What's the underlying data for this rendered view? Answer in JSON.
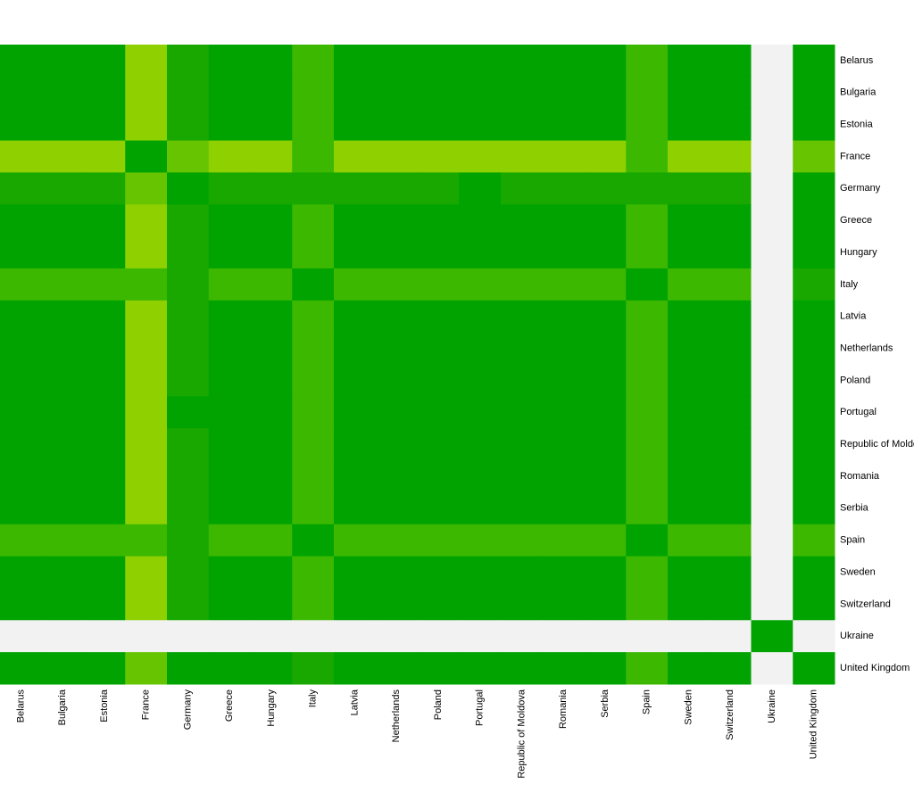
{
  "chart_data": {
    "type": "heatmap",
    "categories": [
      "Belarus",
      "Bulgaria",
      "Estonia",
      "France",
      "Germany",
      "Greece",
      "Hungary",
      "Italy",
      "Latvia",
      "Netherlands",
      "Poland",
      "Portugal",
      "Republic of Moldova",
      "Romania",
      "Serbia",
      "Spain",
      "Sweden",
      "Switzerland",
      "Ukraine",
      "United Kingdom"
    ],
    "cell_colors": [
      [
        "#00a300",
        "#00a300",
        "#00a300",
        "#8ed000",
        "#18a800",
        "#00a300",
        "#00a300",
        "#3cb800",
        "#00a300",
        "#00a300",
        "#00a300",
        "#00a300",
        "#00a300",
        "#00a300",
        "#00a300",
        "#3cb800",
        "#00a300",
        "#00a300",
        "#f2f2f2",
        "#00a300"
      ],
      [
        "#00a300",
        "#00a300",
        "#00a300",
        "#8ed000",
        "#18a800",
        "#00a300",
        "#00a300",
        "#3cb800",
        "#00a300",
        "#00a300",
        "#00a300",
        "#00a300",
        "#00a300",
        "#00a300",
        "#00a300",
        "#3cb800",
        "#00a300",
        "#00a300",
        "#f2f2f2",
        "#00a300"
      ],
      [
        "#00a300",
        "#00a300",
        "#00a300",
        "#8ed000",
        "#18a800",
        "#00a300",
        "#00a300",
        "#3cb800",
        "#00a300",
        "#00a300",
        "#00a300",
        "#00a300",
        "#00a300",
        "#00a300",
        "#00a300",
        "#3cb800",
        "#00a300",
        "#00a300",
        "#f2f2f2",
        "#00a300"
      ],
      [
        "#8ed000",
        "#8ed000",
        "#8ed000",
        "#00a300",
        "#66c400",
        "#8ed000",
        "#8ed000",
        "#3cb800",
        "#8ed000",
        "#8ed000",
        "#8ed000",
        "#8ed000",
        "#8ed000",
        "#8ed000",
        "#8ed000",
        "#3cb800",
        "#8ed000",
        "#8ed000",
        "#f2f2f2",
        "#66c400"
      ],
      [
        "#18a800",
        "#18a800",
        "#18a800",
        "#66c400",
        "#00a300",
        "#18a800",
        "#18a800",
        "#18a800",
        "#18a800",
        "#18a800",
        "#18a800",
        "#00a300",
        "#18a800",
        "#18a800",
        "#18a800",
        "#18a800",
        "#18a800",
        "#18a800",
        "#f2f2f2",
        "#00a300"
      ],
      [
        "#00a300",
        "#00a300",
        "#00a300",
        "#8ed000",
        "#18a800",
        "#00a300",
        "#00a300",
        "#3cb800",
        "#00a300",
        "#00a300",
        "#00a300",
        "#00a300",
        "#00a300",
        "#00a300",
        "#00a300",
        "#3cb800",
        "#00a300",
        "#00a300",
        "#f2f2f2",
        "#00a300"
      ],
      [
        "#00a300",
        "#00a300",
        "#00a300",
        "#8ed000",
        "#18a800",
        "#00a300",
        "#00a300",
        "#3cb800",
        "#00a300",
        "#00a300",
        "#00a300",
        "#00a300",
        "#00a300",
        "#00a300",
        "#00a300",
        "#3cb800",
        "#00a300",
        "#00a300",
        "#f2f2f2",
        "#00a300"
      ],
      [
        "#3cb800",
        "#3cb800",
        "#3cb800",
        "#3cb800",
        "#18a800",
        "#3cb800",
        "#3cb800",
        "#00a300",
        "#3cb800",
        "#3cb800",
        "#3cb800",
        "#3cb800",
        "#3cb800",
        "#3cb800",
        "#3cb800",
        "#00a300",
        "#3cb800",
        "#3cb800",
        "#f2f2f2",
        "#18a800"
      ],
      [
        "#00a300",
        "#00a300",
        "#00a300",
        "#8ed000",
        "#18a800",
        "#00a300",
        "#00a300",
        "#3cb800",
        "#00a300",
        "#00a300",
        "#00a300",
        "#00a300",
        "#00a300",
        "#00a300",
        "#00a300",
        "#3cb800",
        "#00a300",
        "#00a300",
        "#f2f2f2",
        "#00a300"
      ],
      [
        "#00a300",
        "#00a300",
        "#00a300",
        "#8ed000",
        "#18a800",
        "#00a300",
        "#00a300",
        "#3cb800",
        "#00a300",
        "#00a300",
        "#00a300",
        "#00a300",
        "#00a300",
        "#00a300",
        "#00a300",
        "#3cb800",
        "#00a300",
        "#00a300",
        "#f2f2f2",
        "#00a300"
      ],
      [
        "#00a300",
        "#00a300",
        "#00a300",
        "#8ed000",
        "#18a800",
        "#00a300",
        "#00a300",
        "#3cb800",
        "#00a300",
        "#00a300",
        "#00a300",
        "#00a300",
        "#00a300",
        "#00a300",
        "#00a300",
        "#3cb800",
        "#00a300",
        "#00a300",
        "#f2f2f2",
        "#00a300"
      ],
      [
        "#00a300",
        "#00a300",
        "#00a300",
        "#8ed000",
        "#00a300",
        "#00a300",
        "#00a300",
        "#3cb800",
        "#00a300",
        "#00a300",
        "#00a300",
        "#00a300",
        "#00a300",
        "#00a300",
        "#00a300",
        "#3cb800",
        "#00a300",
        "#00a300",
        "#f2f2f2",
        "#00a300"
      ],
      [
        "#00a300",
        "#00a300",
        "#00a300",
        "#8ed000",
        "#18a800",
        "#00a300",
        "#00a300",
        "#3cb800",
        "#00a300",
        "#00a300",
        "#00a300",
        "#00a300",
        "#00a300",
        "#00a300",
        "#00a300",
        "#3cb800",
        "#00a300",
        "#00a300",
        "#f2f2f2",
        "#00a300"
      ],
      [
        "#00a300",
        "#00a300",
        "#00a300",
        "#8ed000",
        "#18a800",
        "#00a300",
        "#00a300",
        "#3cb800",
        "#00a300",
        "#00a300",
        "#00a300",
        "#00a300",
        "#00a300",
        "#00a300",
        "#00a300",
        "#3cb800",
        "#00a300",
        "#00a300",
        "#f2f2f2",
        "#00a300"
      ],
      [
        "#00a300",
        "#00a300",
        "#00a300",
        "#8ed000",
        "#18a800",
        "#00a300",
        "#00a300",
        "#3cb800",
        "#00a300",
        "#00a300",
        "#00a300",
        "#00a300",
        "#00a300",
        "#00a300",
        "#00a300",
        "#3cb800",
        "#00a300",
        "#00a300",
        "#f2f2f2",
        "#00a300"
      ],
      [
        "#3cb800",
        "#3cb800",
        "#3cb800",
        "#3cb800",
        "#18a800",
        "#3cb800",
        "#3cb800",
        "#00a300",
        "#3cb800",
        "#3cb800",
        "#3cb800",
        "#3cb800",
        "#3cb800",
        "#3cb800",
        "#3cb800",
        "#00a300",
        "#3cb800",
        "#3cb800",
        "#f2f2f2",
        "#3cb800"
      ],
      [
        "#00a300",
        "#00a300",
        "#00a300",
        "#8ed000",
        "#18a800",
        "#00a300",
        "#00a300",
        "#3cb800",
        "#00a300",
        "#00a300",
        "#00a300",
        "#00a300",
        "#00a300",
        "#00a300",
        "#00a300",
        "#3cb800",
        "#00a300",
        "#00a300",
        "#f2f2f2",
        "#00a300"
      ],
      [
        "#00a300",
        "#00a300",
        "#00a300",
        "#8ed000",
        "#18a800",
        "#00a300",
        "#00a300",
        "#3cb800",
        "#00a300",
        "#00a300",
        "#00a300",
        "#00a300",
        "#00a300",
        "#00a300",
        "#00a300",
        "#3cb800",
        "#00a300",
        "#00a300",
        "#f2f2f2",
        "#00a300"
      ],
      [
        "#f2f2f2",
        "#f2f2f2",
        "#f2f2f2",
        "#f2f2f2",
        "#f2f2f2",
        "#f2f2f2",
        "#f2f2f2",
        "#f2f2f2",
        "#f2f2f2",
        "#f2f2f2",
        "#f2f2f2",
        "#f2f2f2",
        "#f2f2f2",
        "#f2f2f2",
        "#f2f2f2",
        "#f2f2f2",
        "#f2f2f2",
        "#f2f2f2",
        "#00a300",
        "#f2f2f2"
      ],
      [
        "#00a300",
        "#00a300",
        "#00a300",
        "#66c400",
        "#00a300",
        "#00a300",
        "#00a300",
        "#18a800",
        "#00a300",
        "#00a300",
        "#00a300",
        "#00a300",
        "#00a300",
        "#00a300",
        "#00a300",
        "#3cb800",
        "#00a300",
        "#00a300",
        "#f2f2f2",
        "#00a300"
      ]
    ]
  }
}
